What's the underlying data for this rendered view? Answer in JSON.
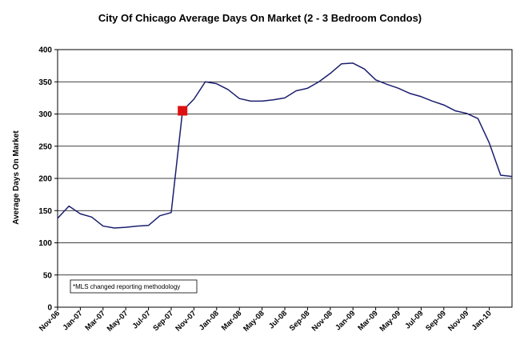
{
  "chart_data": {
    "type": "line",
    "title": "City Of Chicago Average Days On Market (2 - 3 Bedroom Condos)",
    "xlabel": "",
    "ylabel": "Average Days On Market",
    "ylim": [
      0,
      400
    ],
    "yticks": [
      0,
      50,
      100,
      150,
      200,
      250,
      300,
      350,
      400
    ],
    "grid": true,
    "legend": "none",
    "x_tick_labels": [
      "Nov-06",
      "Jan-07",
      "Mar-07",
      "May-07",
      "Jul-07",
      "Sep-07",
      "Nov-07",
      "Jan-08",
      "Mar-08",
      "May-08",
      "Jul-08",
      "Sep-08",
      "Nov-08",
      "Jan-09",
      "Mar-09",
      "May-09",
      "Jul-09",
      "Sep-09",
      "Nov-09",
      "Jan-10"
    ],
    "x": [
      "Nov-06",
      "Dec-06",
      "Jan-07",
      "Feb-07",
      "Mar-07",
      "Apr-07",
      "May-07",
      "Jun-07",
      "Jul-07",
      "Aug-07",
      "Sep-07",
      "Oct-07",
      "Nov-07",
      "Dec-07",
      "Jan-08",
      "Feb-08",
      "Mar-08",
      "Apr-08",
      "May-08",
      "Jun-08",
      "Jul-08",
      "Aug-08",
      "Sep-08",
      "Oct-08",
      "Nov-08",
      "Dec-08",
      "Jan-09",
      "Feb-09",
      "Mar-09",
      "Apr-09",
      "May-09",
      "Jun-09",
      "Jul-09",
      "Aug-09",
      "Sep-09",
      "Oct-09",
      "Nov-09",
      "Dec-09",
      "Jan-10",
      "Feb-10",
      "Mar-10"
    ],
    "series": [
      {
        "values": [
          138,
          157,
          145,
          140,
          126,
          123,
          124,
          126,
          127,
          142,
          147,
          305,
          323,
          350,
          347,
          338,
          324,
          320,
          320,
          322,
          325,
          336,
          340,
          350,
          363,
          378,
          379,
          370,
          353,
          346,
          340,
          332,
          327,
          320,
          314,
          305,
          301,
          293,
          255,
          205,
          203
        ],
        "color": "#1a1f6e"
      }
    ],
    "marker": {
      "x": "Oct-07",
      "y": 305,
      "color": "#dd1111"
    },
    "annotation": "*MLS changed reporting methodology"
  }
}
